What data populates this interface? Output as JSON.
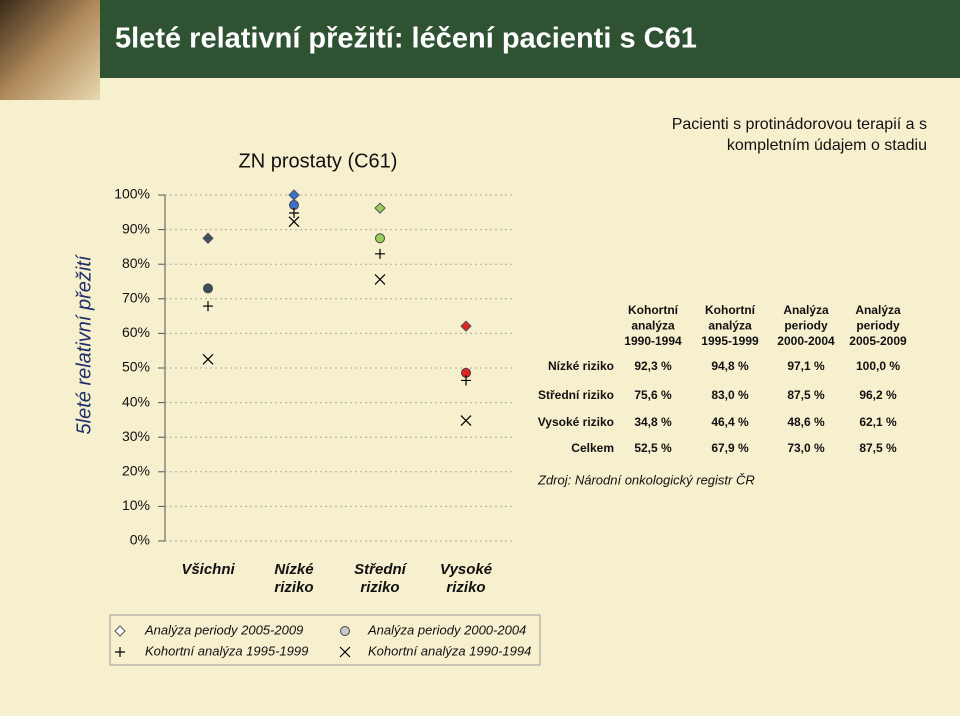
{
  "title": "5leté relativní přežití: léčení pacienti s C61",
  "chart_data": {
    "type": "scatter",
    "title": "ZN prostaty (C61)",
    "ylabel": "5leté relativní přežití",
    "annotation": "Pacienti s protinádorovou terapií a s kompletním údajem o stadiu",
    "categories": [
      "Všichni",
      "Nízké riziko",
      "Střední riziko",
      "Vysoké riziko"
    ],
    "category_colors": [
      "#3d4d5e",
      "#3a6fd0",
      "#9ccf5a",
      "#e02424"
    ],
    "ylim": [
      0,
      100
    ],
    "yticks": [
      {
        "value": 0,
        "label": "0%"
      },
      {
        "value": 10,
        "label": "10%"
      },
      {
        "value": 20,
        "label": "20%"
      },
      {
        "value": 30,
        "label": "30%"
      },
      {
        "value": 40,
        "label": "40%"
      },
      {
        "value": 50,
        "label": "50%"
      },
      {
        "value": 60,
        "label": "60%"
      },
      {
        "value": 70,
        "label": "70%"
      },
      {
        "value": 80,
        "label": "80%"
      },
      {
        "value": 90,
        "label": "90%"
      },
      {
        "value": 100,
        "label": "100%"
      }
    ],
    "grid": true,
    "series": [
      {
        "name": "Analýza periody 2005-2009",
        "marker": "diamond",
        "color": "#ffffff",
        "values": [
          87.5,
          100.0,
          96.2,
          62.1
        ],
        "value_labels": [
          "87,5 %",
          "100,0 %",
          "96,2 %",
          "62,1 %"
        ]
      },
      {
        "name": "Analýza periody 2000-2004",
        "marker": "circle",
        "color": "#c8c8c8",
        "values": [
          73.0,
          97.1,
          87.5,
          48.6
        ],
        "value_labels": [
          "73,0 %",
          "97,1 %",
          "87,5 %",
          "48,6 %"
        ]
      },
      {
        "name": "Kohortní analýza 1995-1999",
        "marker": "plus",
        "color": "#000000",
        "values": [
          67.9,
          94.8,
          83.0,
          46.4
        ],
        "value_labels": [
          "67,9 %",
          "94,8 %",
          "83,0 %",
          "46,4 %"
        ]
      },
      {
        "name": "Kohortní analýza 1990-1994",
        "marker": "cross",
        "color": "#000000",
        "values": [
          52.5,
          92.3,
          75.6,
          34.8
        ],
        "value_labels": [
          "52,5 %",
          "92,3 %",
          "75,6 %",
          "34,8 %"
        ]
      }
    ]
  },
  "table": {
    "total_label": "Celkem",
    "source": "Zdroj: Národní onkologický registr ČR"
  }
}
